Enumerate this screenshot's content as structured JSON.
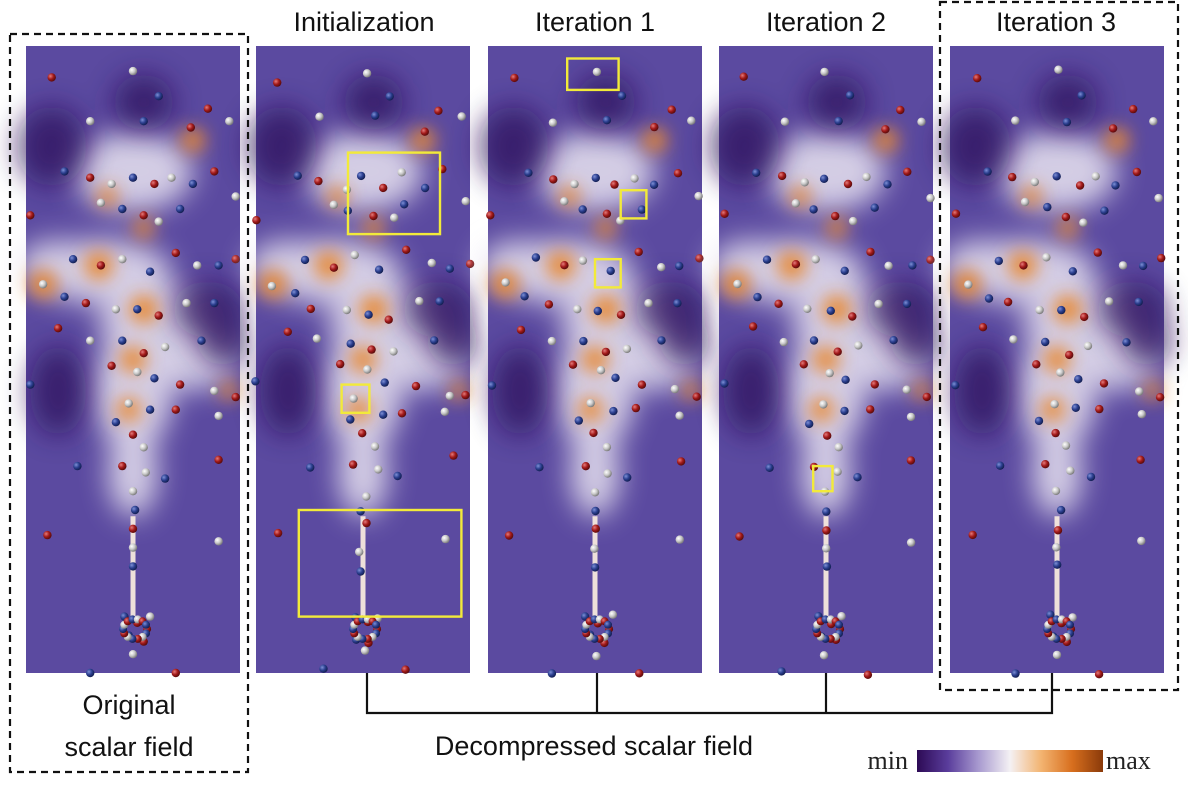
{
  "panels": [
    {
      "title": "",
      "caption_lines": [
        "Original",
        "scalar field"
      ],
      "highlighted": true,
      "seed": 11,
      "boxes": []
    },
    {
      "title": "Initialization",
      "highlighted": false,
      "seed": 23,
      "boxes": [
        [
          0.43,
          0.17,
          0.43,
          0.13
        ],
        [
          0.4,
          0.54,
          0.13,
          0.045
        ],
        [
          0.2,
          0.74,
          0.76,
          0.17
        ]
      ]
    },
    {
      "title": "Iteration 1",
      "highlighted": false,
      "seed": 37,
      "boxes": [
        [
          0.37,
          0.02,
          0.24,
          0.05
        ],
        [
          0.62,
          0.23,
          0.12,
          0.045
        ],
        [
          0.5,
          0.34,
          0.12,
          0.045
        ]
      ]
    },
    {
      "title": "Iteration 2",
      "highlighted": false,
      "seed": 51,
      "boxes": [
        [
          0.44,
          0.67,
          0.09,
          0.04
        ]
      ]
    },
    {
      "title": "Iteration 3",
      "highlighted": true,
      "seed": 67,
      "boxes": []
    }
  ],
  "caption": "Decompressed scalar field",
  "legend": {
    "min_label": "min",
    "max_label": "max",
    "colors": [
      "#2d0a55",
      "#5a3d9c",
      "#a99bd0",
      "#f4f1f4",
      "#f3b471",
      "#d86f1e",
      "#8a3a0a"
    ]
  },
  "colors": {
    "box": "#f2ea3a",
    "background": "#5b4aa0",
    "warm": "#e8872e",
    "atom_red": "#a31a1a",
    "atom_blue": "#2b3f8f",
    "atom_gray": "#c9c9c9"
  }
}
